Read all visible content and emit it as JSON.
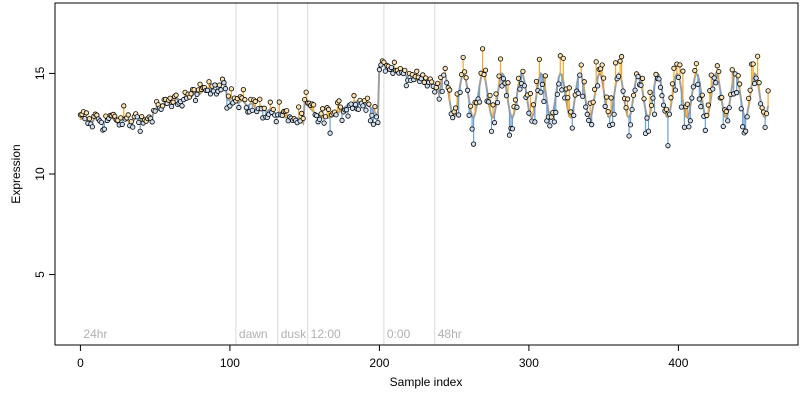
{
  "chart_data": {
    "type": "scatter",
    "xlabel": "Sample index",
    "ylabel": "Expression",
    "xlim": [
      -17,
      480
    ],
    "ylim": [
      1.5,
      18.5
    ],
    "x_ticks": [
      0,
      100,
      200,
      300,
      400
    ],
    "y_ticks": [
      5,
      10,
      15
    ],
    "n_points": 461,
    "markers": [
      {
        "label": "24hr",
        "x": 0
      },
      {
        "label": "dawn",
        "x": 104
      },
      {
        "label": "dusk",
        "x": 132
      },
      {
        "label": "12:00",
        "x": 152
      },
      {
        "label": "0:00",
        "x": 203
      },
      {
        "label": "48hr",
        "x": 237
      }
    ],
    "segments": [
      {
        "from": 0,
        "to": 49,
        "mode": "flat",
        "level": 12.7,
        "amplitude": 0.45
      },
      {
        "from": 49,
        "to": 98,
        "mode": "rise",
        "start": 13.2,
        "end": 14.6,
        "amplitude": 0.4
      },
      {
        "from": 98,
        "to": 150,
        "mode": "fall",
        "start": 13.8,
        "end": 12.6,
        "amplitude": 0.5
      },
      {
        "from": 150,
        "to": 200,
        "mode": "dip",
        "start": 13.6,
        "end": 12.8,
        "amplitude": 0.6
      },
      {
        "from": 200,
        "to": 240,
        "mode": "fall",
        "start": 15.5,
        "end": 14.3,
        "amplitude": 0.35
      },
      {
        "from": 240,
        "to": 462,
        "mode": "oscillate",
        "center": 13.9,
        "amplitude": 1.1,
        "period": 13
      }
    ],
    "colors": {
      "fit_line": "#9e9e9e",
      "positive_residual": "#f5a623",
      "negative_residual": "#6a9ed6",
      "marker_line": "#d9d9d9",
      "marker_text": "#b0b0b0",
      "axis": "#000000"
    }
  }
}
